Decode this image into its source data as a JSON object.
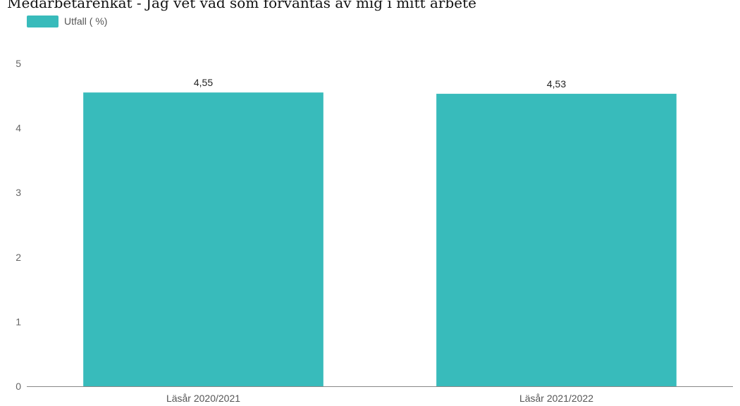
{
  "chart_data": {
    "type": "bar",
    "title": "Medarbetarenkät - Jag vet vad som förväntas av mig i mitt arbete",
    "categories": [
      "Läsår 2020/2021",
      "Läsår 2021/2022"
    ],
    "series": [
      {
        "name": "Utfall ( %)",
        "values": [
          4.55,
          4.53
        ],
        "value_labels": [
          "4,55",
          "4,53"
        ],
        "color": "#38BBBB"
      }
    ],
    "yticks": [
      "0",
      "1",
      "2",
      "3",
      "4",
      "5"
    ],
    "ylim": [
      0,
      5
    ],
    "grid": false,
    "legend_position": "top-left"
  }
}
